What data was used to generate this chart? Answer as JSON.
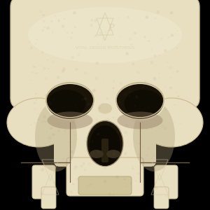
{
  "background_color": "#000000",
  "skull_base_color": "#e8dfc0",
  "skull_shadow_color": "#8a7a60",
  "skull_dark_color": "#2a2010",
  "watermark_color": "#d4c9a8",
  "watermark_text": "VITAL DESIGN PROSTHESIS",
  "logo_color": "#c8bc98",
  "fig_width": 3.0,
  "fig_height": 3.0,
  "dpi": 100,
  "title_fontsize": 7,
  "skull_outline_color": "#c8ba90"
}
